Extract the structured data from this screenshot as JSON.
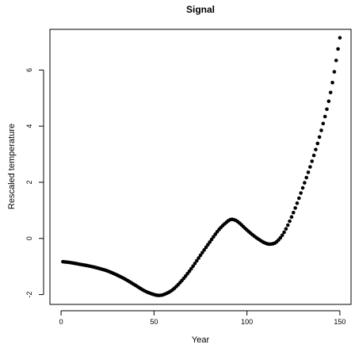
{
  "chart_data": {
    "type": "scatter",
    "title": "Signal",
    "xlabel": "Year",
    "ylabel": "Rescaled temperature",
    "xlim": [
      -6,
      156
    ],
    "ylim": [
      -2.35,
      7.45
    ],
    "xticks": [
      0,
      50,
      100,
      150
    ],
    "yticks": [
      -2,
      0,
      2,
      4,
      6
    ],
    "grid": false,
    "legend": "none",
    "marker_color": "#000000",
    "x_start": 1,
    "x_end": 150,
    "x_step": 1,
    "anchors": [
      [
        1,
        -0.83
      ],
      [
        5,
        -0.86
      ],
      [
        10,
        -0.92
      ],
      [
        15,
        -0.98
      ],
      [
        20,
        -1.06
      ],
      [
        25,
        -1.16
      ],
      [
        30,
        -1.3
      ],
      [
        35,
        -1.47
      ],
      [
        40,
        -1.67
      ],
      [
        45,
        -1.87
      ],
      [
        50,
        -2.0
      ],
      [
        53,
        -2.03
      ],
      [
        56,
        -1.98
      ],
      [
        60,
        -1.83
      ],
      [
        65,
        -1.5
      ],
      [
        70,
        -1.08
      ],
      [
        75,
        -0.6
      ],
      [
        80,
        -0.13
      ],
      [
        85,
        0.32
      ],
      [
        90,
        0.63
      ],
      [
        92,
        0.68
      ],
      [
        95,
        0.6
      ],
      [
        100,
        0.3
      ],
      [
        105,
        0.03
      ],
      [
        110,
        -0.17
      ],
      [
        113,
        -0.2
      ],
      [
        116,
        -0.12
      ],
      [
        120,
        0.22
      ],
      [
        125,
        0.92
      ],
      [
        130,
        1.8
      ],
      [
        135,
        2.75
      ],
      [
        140,
        3.85
      ],
      [
        145,
        5.2
      ],
      [
        150,
        7.15
      ]
    ]
  }
}
